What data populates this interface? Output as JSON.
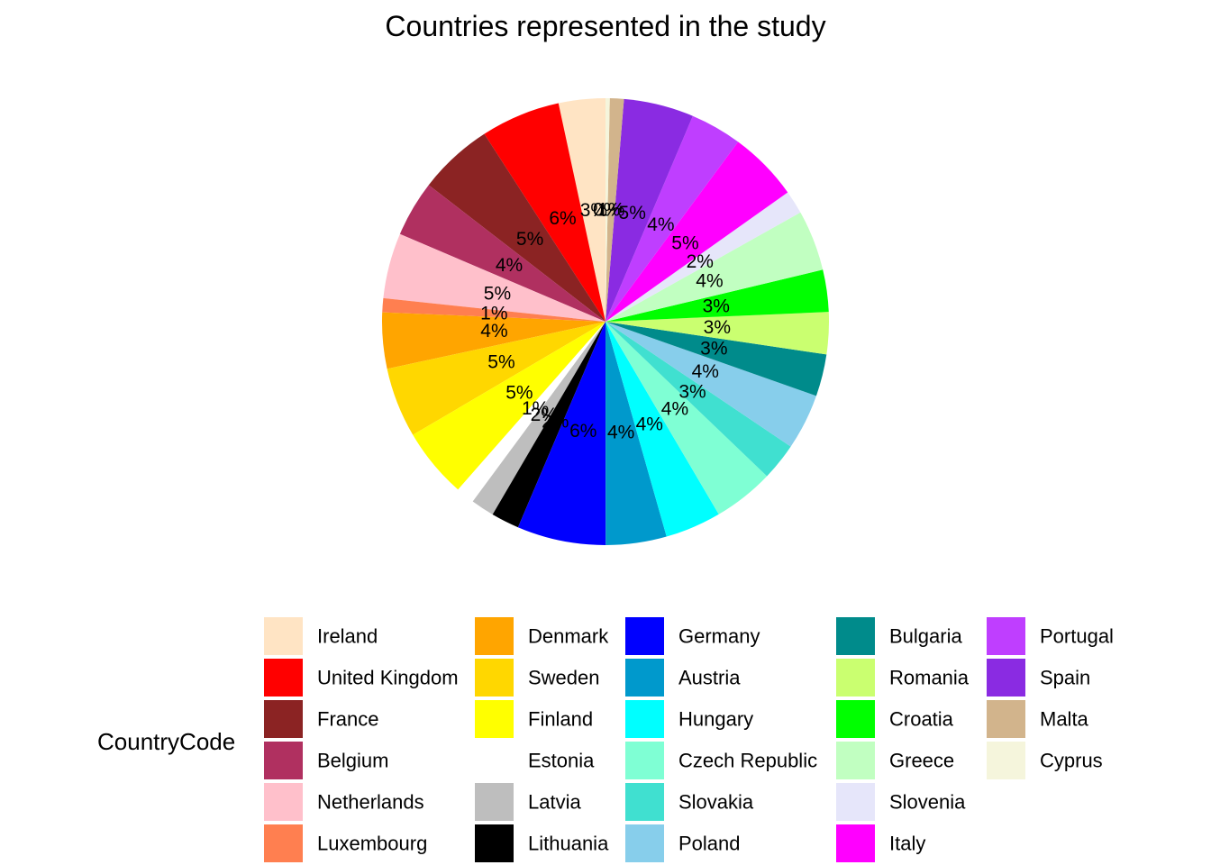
{
  "chart_data": {
    "type": "pie",
    "title": "Countries represented in the study",
    "legend_title": "CountryCode",
    "legend_placement": "bottom",
    "slices": [
      {
        "name": "Ireland",
        "label": "3%",
        "value": 3.33,
        "color": "#FFE4C4"
      },
      {
        "name": "United Kingdom",
        "label": "6%",
        "value": 5.67,
        "color": "#FF0000"
      },
      {
        "name": "France",
        "label": "5%",
        "value": 5.33,
        "color": "#8B2323"
      },
      {
        "name": "Belgium",
        "label": "4%",
        "value": 4.0,
        "color": "#B03060"
      },
      {
        "name": "Netherlands",
        "label": "5%",
        "value": 4.67,
        "color": "#FFC0CB"
      },
      {
        "name": "Luxembourg",
        "label": "1%",
        "value": 1.0,
        "color": "#FF7F50"
      },
      {
        "name": "Denmark",
        "label": "4%",
        "value": 4.0,
        "color": "#FFA500"
      },
      {
        "name": "Sweden",
        "label": "5%",
        "value": 5.0,
        "color": "#FFD700"
      },
      {
        "name": "Finland",
        "label": "5%",
        "value": 5.0,
        "color": "#FFFF00"
      },
      {
        "name": "Estonia",
        "label": "1%",
        "value": 1.33,
        "color": "#FFFFFF"
      },
      {
        "name": "Latvia",
        "label": "2%",
        "value": 1.67,
        "color": "#BEBEBE"
      },
      {
        "name": "Lithuania",
        "label": "2%",
        "value": 2.0,
        "color": "#000000"
      },
      {
        "name": "Germany",
        "label": "6%",
        "value": 6.33,
        "color": "#0000FF"
      },
      {
        "name": "Austria",
        "label": "4%",
        "value": 4.33,
        "color": "#0099CC"
      },
      {
        "name": "Hungary",
        "label": "4%",
        "value": 4.0,
        "color": "#00FFFF"
      },
      {
        "name": "Czech Republic",
        "label": "4%",
        "value": 4.33,
        "color": "#7FFFD4"
      },
      {
        "name": "Slovakia",
        "label": "3%",
        "value": 2.67,
        "color": "#40E0D0"
      },
      {
        "name": "Poland",
        "label": "4%",
        "value": 4.0,
        "color": "#87CEEB"
      },
      {
        "name": "Bulgaria",
        "label": "3%",
        "value": 3.0,
        "color": "#008B8B"
      },
      {
        "name": "Romania",
        "label": "3%",
        "value": 3.0,
        "color": "#CAFF70"
      },
      {
        "name": "Croatia",
        "label": "3%",
        "value": 3.0,
        "color": "#00FF00"
      },
      {
        "name": "Greece",
        "label": "4%",
        "value": 4.33,
        "color": "#C1FFC1"
      },
      {
        "name": "Slovenia",
        "label": "2%",
        "value": 1.67,
        "color": "#E6E6FA"
      },
      {
        "name": "Italy",
        "label": "5%",
        "value": 5.0,
        "color": "#FF00FF"
      },
      {
        "name": "Portugal",
        "label": "4%",
        "value": 3.67,
        "color": "#BF3EFF"
      },
      {
        "name": "Spain",
        "label": "5%",
        "value": 5.0,
        "color": "#8A2BE2"
      },
      {
        "name": "Malta",
        "label": "1%",
        "value": 1.0,
        "color": "#D2B48C"
      },
      {
        "name": "Cyprus",
        "label": "0%",
        "value": 0.3,
        "color": "#F5F5DC"
      }
    ]
  }
}
